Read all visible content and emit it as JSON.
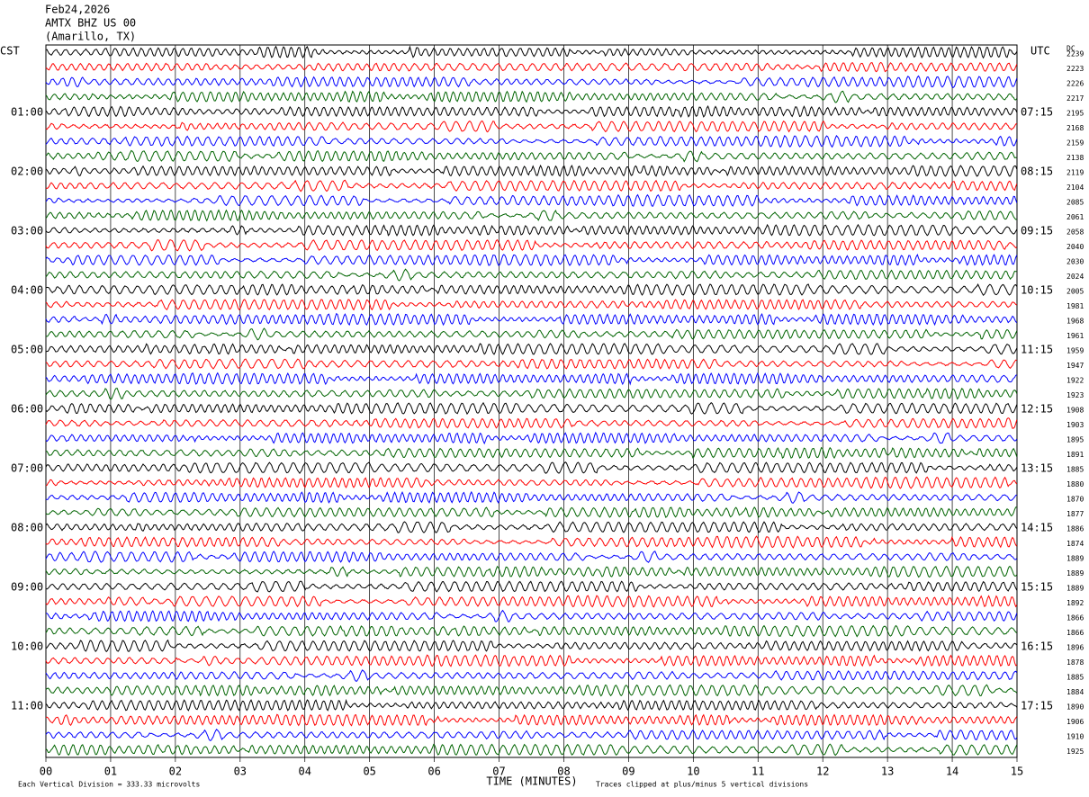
{
  "chart_data": {
    "type": "helicorder",
    "date": "Feb24,2026",
    "station": "AMTX BHZ US 00",
    "location": "(Amarillo, TX)",
    "left_axis_title": "CST",
    "right_axis_title": "UTC",
    "dc_title": "DC",
    "xlabel": "TIME (MINUTES)",
    "scale_note": "Each Vertical Division =  333.33 microvolts",
    "clip_note": "Traces clipped at plus/minus 5 vertical divisions",
    "xlim": [
      0,
      15
    ],
    "xticks": [
      {
        "value": 0,
        "label": "00"
      },
      {
        "value": 1,
        "label": "01"
      },
      {
        "value": 2,
        "label": "02"
      },
      {
        "value": 3,
        "label": "03"
      },
      {
        "value": 4,
        "label": "04"
      },
      {
        "value": 5,
        "label": "05"
      },
      {
        "value": 6,
        "label": "06"
      },
      {
        "value": 7,
        "label": "07"
      },
      {
        "value": 8,
        "label": "08"
      },
      {
        "value": 9,
        "label": "09"
      },
      {
        "value": 10,
        "label": "10"
      },
      {
        "value": 11,
        "label": "11"
      },
      {
        "value": 12,
        "label": "12"
      },
      {
        "value": 13,
        "label": "13"
      },
      {
        "value": 14,
        "label": "14"
      },
      {
        "value": 15,
        "label": "15"
      }
    ],
    "trace_colors": [
      "#000000",
      "#ff0000",
      "#0000ff",
      "#006400"
    ],
    "cst_labels": [
      null,
      null,
      null,
      null,
      "01:00",
      null,
      null,
      null,
      "02:00",
      null,
      null,
      null,
      "03:00",
      null,
      null,
      null,
      "04:00",
      null,
      null,
      null,
      "05:00",
      null,
      null,
      null,
      "06:00",
      null,
      null,
      null,
      "07:00",
      null,
      null,
      null,
      "08:00",
      null,
      null,
      null,
      "09:00",
      null,
      null,
      null,
      "10:00",
      null,
      null,
      null,
      "11:00",
      null,
      null,
      null
    ],
    "utc_labels": [
      null,
      null,
      null,
      null,
      "07:15",
      null,
      null,
      null,
      "08:15",
      null,
      null,
      null,
      "09:15",
      null,
      null,
      null,
      "10:15",
      null,
      null,
      null,
      "11:15",
      null,
      null,
      null,
      "12:15",
      null,
      null,
      null,
      "13:15",
      null,
      null,
      null,
      "14:15",
      null,
      null,
      null,
      "15:15",
      null,
      null,
      null,
      "16:15",
      null,
      null,
      null,
      "17:15",
      null,
      null,
      null
    ],
    "dc_offsets": [
      2239,
      2223,
      2226,
      2217,
      2195,
      2168,
      2159,
      2138,
      2119,
      2104,
      2085,
      2061,
      2058,
      2040,
      2030,
      2024,
      2005,
      1981,
      1968,
      1961,
      1959,
      1947,
      1922,
      1923,
      1908,
      1903,
      1895,
      1891,
      1885,
      1880,
      1870,
      1877,
      1886,
      1874,
      1889,
      1889,
      1889,
      1892,
      1866,
      1866,
      1896,
      1878,
      1885,
      1884,
      1890,
      1906,
      1910,
      1925
    ]
  }
}
